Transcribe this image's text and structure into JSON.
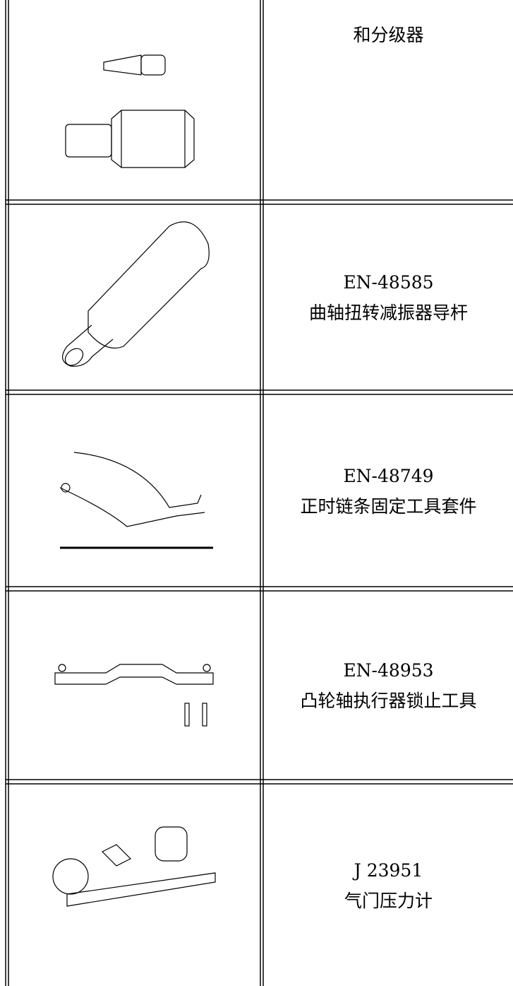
{
  "table": {
    "rows": [
      {
        "lines": [
          "和分级器"
        ]
      },
      {
        "lines": [
          "EN-48585",
          "曲轴扭转减振器导杆"
        ]
      },
      {
        "lines": [
          "EN-48749",
          "正时链条固定工具套件"
        ]
      },
      {
        "lines": [
          "EN-48953",
          "凸轮轴执行器锁止工具"
        ]
      },
      {
        "lines": [
          "J 23951",
          "气门压力计"
        ]
      }
    ]
  }
}
